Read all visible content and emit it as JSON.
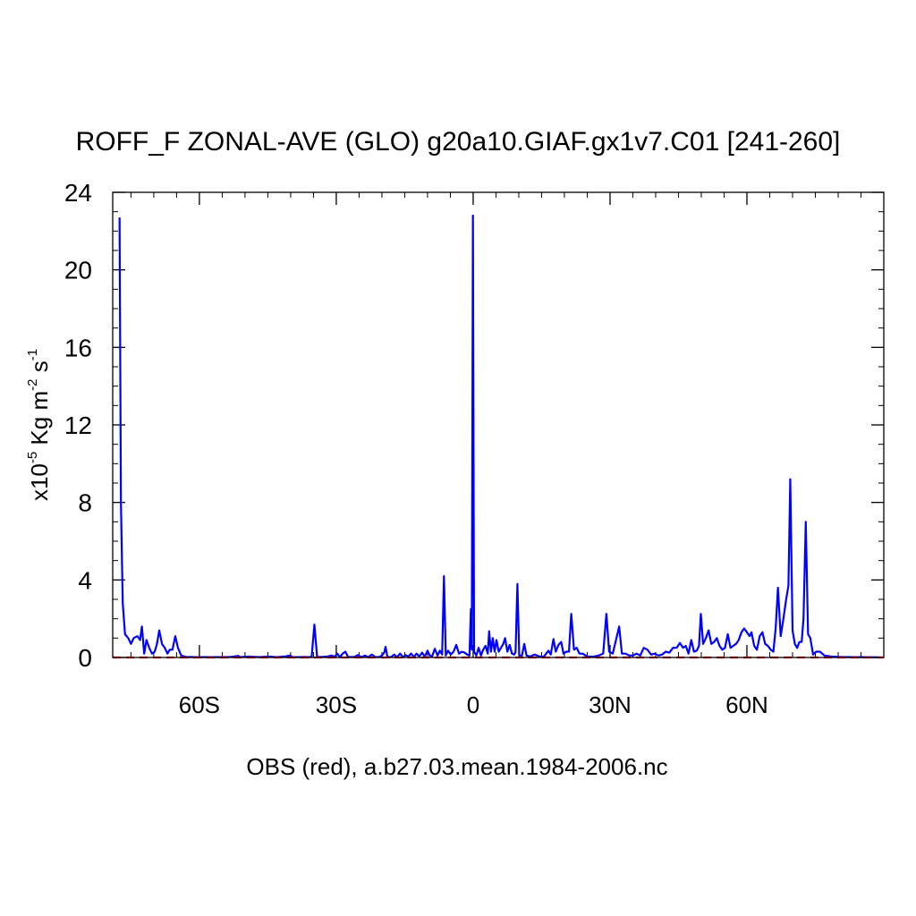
{
  "chart_data": {
    "type": "line",
    "title": "ROFF_F ZONAL-AVE (GLO) g20a10.GIAF.gx1v7.C01 [241-260]",
    "xlabel": "OBS (red), a.b27.03.mean.1984-2006.nc",
    "ylabel": {
      "prefix": "x10",
      "exp1": "-5",
      "mid": " Kg m",
      "exp2": "-2",
      "mid2": " s",
      "exp3": "-1"
    },
    "xlim": [
      -79,
      90
    ],
    "ylim": [
      0,
      24
    ],
    "x_ticks": [
      {
        "value": -60,
        "label": "60S"
      },
      {
        "value": -30,
        "label": "30S"
      },
      {
        "value": 0,
        "label": "0"
      },
      {
        "value": 30,
        "label": "30N"
      },
      {
        "value": 60,
        "label": "60N"
      }
    ],
    "y_ticks": [
      {
        "value": 0,
        "label": "0"
      },
      {
        "value": 4,
        "label": "4"
      },
      {
        "value": 8,
        "label": "8"
      },
      {
        "value": 12,
        "label": "12"
      },
      {
        "value": 16,
        "label": "16"
      },
      {
        "value": 20,
        "label": "20"
      },
      {
        "value": 24,
        "label": "24"
      }
    ],
    "series": [
      {
        "color": "#0000ff",
        "style": "solid",
        "points": [
          [
            -77.5,
            22.7
          ],
          [
            -77.2,
            8.0
          ],
          [
            -76.8,
            2.8
          ],
          [
            -76.3,
            1.2
          ],
          [
            -75.6,
            1.0
          ],
          [
            -75.0,
            0.7
          ],
          [
            -74.4,
            1.0
          ],
          [
            -73.6,
            1.1
          ],
          [
            -73.0,
            0.9
          ],
          [
            -72.6,
            1.6
          ],
          [
            -72.1,
            0.2
          ],
          [
            -71.6,
            0.9
          ],
          [
            -71.0,
            0.5
          ],
          [
            -70.4,
            0.2
          ],
          [
            -69.8,
            0.3
          ],
          [
            -69.3,
            0.7
          ],
          [
            -68.8,
            1.4
          ],
          [
            -68.2,
            0.7
          ],
          [
            -67.6,
            0.5
          ],
          [
            -67.0,
            0.2
          ],
          [
            -66.5,
            0.4
          ],
          [
            -65.9,
            0.4
          ],
          [
            -65.3,
            1.1
          ],
          [
            -64.7,
            0.5
          ],
          [
            -64.0,
            0.1
          ],
          [
            -63.0,
            0.03
          ],
          [
            -61.0,
            0.02
          ],
          [
            -58.0,
            0.02
          ],
          [
            -55.0,
            0.02
          ],
          [
            -53.0,
            0.03
          ],
          [
            -51.5,
            0.08
          ],
          [
            -51.0,
            0.02
          ],
          [
            -49.0,
            0.05
          ],
          [
            -47.0,
            0.02
          ],
          [
            -45.0,
            0.05
          ],
          [
            -43.0,
            0.02
          ],
          [
            -41.0,
            0.06
          ],
          [
            -40.2,
            0.1
          ],
          [
            -39.5,
            0.02
          ],
          [
            -38.0,
            0.02
          ],
          [
            -37.0,
            0.03
          ],
          [
            -36.0,
            0.02
          ],
          [
            -35.4,
            0.03
          ],
          [
            -34.8,
            1.7
          ],
          [
            -34.2,
            0.03
          ],
          [
            -33.0,
            0.03
          ],
          [
            -32.0,
            0.05
          ],
          [
            -31.0,
            0.1
          ],
          [
            -30.4,
            0.03
          ],
          [
            -29.8,
            0.2
          ],
          [
            -29.2,
            0.02
          ],
          [
            -28.6,
            0.2
          ],
          [
            -28.0,
            0.3
          ],
          [
            -27.4,
            0.02
          ],
          [
            -26.0,
            0.03
          ],
          [
            -25.3,
            0.12
          ],
          [
            -24.5,
            0.02
          ],
          [
            -23.7,
            0.1
          ],
          [
            -23.0,
            0.02
          ],
          [
            -22.2,
            0.15
          ],
          [
            -21.5,
            0.03
          ],
          [
            -20.7,
            0.02
          ],
          [
            -20.0,
            0.1
          ],
          [
            -19.5,
            0.25
          ],
          [
            -19.2,
            0.55
          ],
          [
            -18.8,
            0.03
          ],
          [
            -18.0,
            0.02
          ],
          [
            -17.3,
            0.15
          ],
          [
            -16.7,
            0.02
          ],
          [
            -16.0,
            0.2
          ],
          [
            -15.4,
            0.02
          ],
          [
            -14.8,
            0.12
          ],
          [
            -14.2,
            0.05
          ],
          [
            -13.6,
            0.2
          ],
          [
            -13.0,
            0.03
          ],
          [
            -12.4,
            0.2
          ],
          [
            -11.8,
            0.05
          ],
          [
            -11.2,
            0.25
          ],
          [
            -10.6,
            0.05
          ],
          [
            -10.0,
            0.35
          ],
          [
            -9.5,
            0.1
          ],
          [
            -9.0,
            0.05
          ],
          [
            -8.4,
            0.45
          ],
          [
            -7.8,
            0.1
          ],
          [
            -7.3,
            0.35
          ],
          [
            -6.8,
            0.15
          ],
          [
            -6.4,
            4.2
          ],
          [
            -6.0,
            0.1
          ],
          [
            -5.5,
            0.35
          ],
          [
            -4.9,
            0.15
          ],
          [
            -4.3,
            0.3
          ],
          [
            -3.7,
            0.65
          ],
          [
            -3.1,
            0.2
          ],
          [
            -2.5,
            0.3
          ],
          [
            -1.9,
            0.25
          ],
          [
            -1.3,
            0.15
          ],
          [
            -0.8,
            0.1
          ],
          [
            -0.5,
            2.5
          ],
          [
            -0.3,
            0.4
          ],
          [
            -0.05,
            22.8
          ],
          [
            0.2,
            0.3
          ],
          [
            0.7,
            0.1
          ],
          [
            1.2,
            0.5
          ],
          [
            1.7,
            0.1
          ],
          [
            2.2,
            0.4
          ],
          [
            2.7,
            0.6
          ],
          [
            3.2,
            0.2
          ],
          [
            3.5,
            1.35
          ],
          [
            3.9,
            0.3
          ],
          [
            4.3,
            1.0
          ],
          [
            4.7,
            0.3
          ],
          [
            5.1,
            0.9
          ],
          [
            5.6,
            0.3
          ],
          [
            6.1,
            0.5
          ],
          [
            6.6,
            0.7
          ],
          [
            7.0,
            1.0
          ],
          [
            7.5,
            0.3
          ],
          [
            8.0,
            0.65
          ],
          [
            8.5,
            0.2
          ],
          [
            9.0,
            0.15
          ],
          [
            9.3,
            0.3
          ],
          [
            9.7,
            3.8
          ],
          [
            10.1,
            0.1
          ],
          [
            10.7,
            0.1
          ],
          [
            11.2,
            0.7
          ],
          [
            11.7,
            0.1
          ],
          [
            12.5,
            0.05
          ],
          [
            13.5,
            0.15
          ],
          [
            14.5,
            0.05
          ],
          [
            15.5,
            0.05
          ],
          [
            16.5,
            0.35
          ],
          [
            17.0,
            0.15
          ],
          [
            17.6,
            0.95
          ],
          [
            18.1,
            0.3
          ],
          [
            18.7,
            0.65
          ],
          [
            19.3,
            0.8
          ],
          [
            19.8,
            0.2
          ],
          [
            20.4,
            0.3
          ],
          [
            21.0,
            0.3
          ],
          [
            21.5,
            2.25
          ],
          [
            22.1,
            0.4
          ],
          [
            22.7,
            0.5
          ],
          [
            23.3,
            0.2
          ],
          [
            24.0,
            0.2
          ],
          [
            25.0,
            0.05
          ],
          [
            26.5,
            0.05
          ],
          [
            27.5,
            0.1
          ],
          [
            28.5,
            0.2
          ],
          [
            29.2,
            2.25
          ],
          [
            29.8,
            0.3
          ],
          [
            30.6,
            0.2
          ],
          [
            31.4,
            1.0
          ],
          [
            32.0,
            1.6
          ],
          [
            32.6,
            0.2
          ],
          [
            33.4,
            0.2
          ],
          [
            34.2,
            0.1
          ],
          [
            35.0,
            0.1
          ],
          [
            35.8,
            0.2
          ],
          [
            36.6,
            0.1
          ],
          [
            37.4,
            0.5
          ],
          [
            38.2,
            0.4
          ],
          [
            39.0,
            0.15
          ],
          [
            39.8,
            0.2
          ],
          [
            40.6,
            0.1
          ],
          [
            41.4,
            0.15
          ],
          [
            42.2,
            0.3
          ],
          [
            43.0,
            0.25
          ],
          [
            43.8,
            0.5
          ],
          [
            44.6,
            0.5
          ],
          [
            45.3,
            0.75
          ],
          [
            46.0,
            0.5
          ],
          [
            46.6,
            0.6
          ],
          [
            47.2,
            0.2
          ],
          [
            47.8,
            0.9
          ],
          [
            48.4,
            0.3
          ],
          [
            49.0,
            0.35
          ],
          [
            49.5,
            0.6
          ],
          [
            49.9,
            2.25
          ],
          [
            50.4,
            0.7
          ],
          [
            51.0,
            1.0
          ],
          [
            51.6,
            1.4
          ],
          [
            52.2,
            0.7
          ],
          [
            52.8,
            0.8
          ],
          [
            53.4,
            1.0
          ],
          [
            54.0,
            0.6
          ],
          [
            54.6,
            0.4
          ],
          [
            55.2,
            0.5
          ],
          [
            55.8,
            1.2
          ],
          [
            56.4,
            0.5
          ],
          [
            57.0,
            0.6
          ],
          [
            57.6,
            0.7
          ],
          [
            58.2,
            0.9
          ],
          [
            58.8,
            1.3
          ],
          [
            59.4,
            1.5
          ],
          [
            60.0,
            1.3
          ],
          [
            60.6,
            1.1
          ],
          [
            61.0,
            1.3
          ],
          [
            61.6,
            0.6
          ],
          [
            62.2,
            0.4
          ],
          [
            62.8,
            1.1
          ],
          [
            63.4,
            1.3
          ],
          [
            64.0,
            0.7
          ],
          [
            64.6,
            0.6
          ],
          [
            65.2,
            0.4
          ],
          [
            65.8,
            0.3
          ],
          [
            66.3,
            1.5
          ],
          [
            66.8,
            3.6
          ],
          [
            67.4,
            1.1
          ],
          [
            68.0,
            2.0
          ],
          [
            68.6,
            3.0
          ],
          [
            69.1,
            3.7
          ],
          [
            69.5,
            9.2
          ],
          [
            70.0,
            1.4
          ],
          [
            70.5,
            0.7
          ],
          [
            71.0,
            0.5
          ],
          [
            71.5,
            0.8
          ],
          [
            72.0,
            0.8
          ],
          [
            72.4,
            2.0
          ],
          [
            72.9,
            7.0
          ],
          [
            73.4,
            1.2
          ],
          [
            73.9,
            1.0
          ],
          [
            74.5,
            0.15
          ],
          [
            75.2,
            0.3
          ],
          [
            76.0,
            0.3
          ],
          [
            77.0,
            0.1
          ],
          [
            78.5,
            0.05
          ],
          [
            80.0,
            0.03
          ],
          [
            82.0,
            0.02
          ],
          [
            84.0,
            0.02
          ],
          [
            86.0,
            0.01
          ],
          [
            88.0,
            0.01
          ],
          [
            89.5,
            0.0
          ]
        ]
      },
      {
        "color": "#ff0000",
        "style": "dashed",
        "points": [
          [
            -79,
            0
          ],
          [
            90,
            0
          ]
        ]
      }
    ]
  }
}
